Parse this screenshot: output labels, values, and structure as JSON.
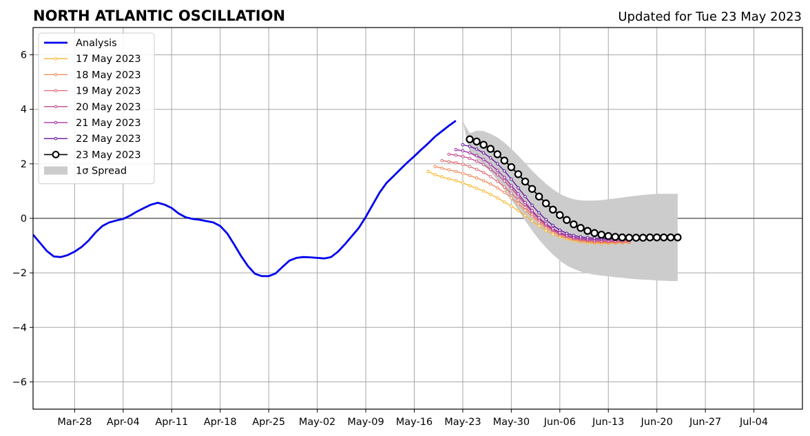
{
  "chart_data": {
    "type": "line",
    "title": "NORTH ATLANTIC OSCILLATION",
    "subtitle": "Updated for Tue 23 May 2023",
    "xlabel": "",
    "ylabel": "",
    "x_axis": {
      "type": "date",
      "range": [
        "2023-03-22",
        "2023-07-11"
      ],
      "ticks": [
        {
          "date": "2023-03-28",
          "label": "Mar-28"
        },
        {
          "date": "2023-04-04",
          "label": "Apr-04"
        },
        {
          "date": "2023-04-11",
          "label": "Apr-11"
        },
        {
          "date": "2023-04-18",
          "label": "Apr-18"
        },
        {
          "date": "2023-04-25",
          "label": "Apr-25"
        },
        {
          "date": "2023-05-02",
          "label": "May-02"
        },
        {
          "date": "2023-05-09",
          "label": "May-09"
        },
        {
          "date": "2023-05-16",
          "label": "May-16"
        },
        {
          "date": "2023-05-23",
          "label": "May-23"
        },
        {
          "date": "2023-05-30",
          "label": "May-30"
        },
        {
          "date": "2023-06-06",
          "label": "Jun-06"
        },
        {
          "date": "2023-06-13",
          "label": "Jun-13"
        },
        {
          "date": "2023-06-20",
          "label": "Jun-20"
        },
        {
          "date": "2023-06-27",
          "label": "Jun-27"
        },
        {
          "date": "2023-07-04",
          "label": "Jul-04"
        }
      ]
    },
    "y_axis": {
      "range": [
        -7,
        7
      ],
      "ticks": [
        {
          "value": -6,
          "label": "−6"
        },
        {
          "value": -4,
          "label": "−4"
        },
        {
          "value": -2,
          "label": "−2"
        },
        {
          "value": 0,
          "label": "0"
        },
        {
          "value": 2,
          "label": "2"
        },
        {
          "value": 4,
          "label": "4"
        },
        {
          "value": 6,
          "label": "6"
        }
      ]
    },
    "grid": true,
    "zero_line": true,
    "legend_position": "top-left",
    "analysis": {
      "name": "Analysis",
      "color": "#0000ee",
      "start_date": "2023-03-22",
      "step_days": 1,
      "values": [
        -0.6,
        -0.9,
        -1.2,
        -1.4,
        -1.42,
        -1.35,
        -1.22,
        -1.05,
        -0.82,
        -0.52,
        -0.28,
        -0.15,
        -0.08,
        -0.02,
        0.1,
        0.25,
        0.38,
        0.5,
        0.57,
        0.5,
        0.38,
        0.18,
        0.04,
        -0.02,
        -0.05,
        -0.1,
        -0.15,
        -0.28,
        -0.55,
        -0.95,
        -1.38,
        -1.75,
        -2.03,
        -2.12,
        -2.12,
        -2.02,
        -1.78,
        -1.55,
        -1.45,
        -1.42,
        -1.43,
        -1.45,
        -1.47,
        -1.42,
        -1.22,
        -0.95,
        -0.65,
        -0.35,
        0.05,
        0.5,
        0.95,
        1.3,
        1.55,
        1.8,
        2.05,
        2.28,
        2.52,
        2.75,
        3.0,
        3.2,
        3.4,
        3.58
      ]
    },
    "spread": {
      "name": "1σ Spread",
      "color": "#cccccc",
      "start_date": "2023-05-23",
      "step_days": 1,
      "upper": [
        3.55,
        3.12,
        3.22,
        3.2,
        3.1,
        2.97,
        2.78,
        2.55,
        2.3,
        2.03,
        1.75,
        1.5,
        1.27,
        1.07,
        0.9,
        0.78,
        0.7,
        0.66,
        0.65,
        0.65,
        0.67,
        0.7,
        0.73,
        0.76,
        0.8,
        0.83,
        0.86,
        0.88,
        0.9,
        0.9,
        0.9,
        0.9
      ],
      "lower": [
        3.55,
        2.4,
        2.2,
        1.96,
        1.7,
        1.4,
        1.05,
        0.68,
        0.3,
        -0.08,
        -0.45,
        -0.78,
        -1.07,
        -1.33,
        -1.55,
        -1.73,
        -1.85,
        -1.95,
        -2.02,
        -2.07,
        -2.1,
        -2.13,
        -2.16,
        -2.18,
        -2.21,
        -2.23,
        -2.25,
        -2.26,
        -2.28,
        -2.29,
        -2.3,
        -2.3
      ]
    },
    "forecasts": [
      {
        "name": "17 May 2023",
        "color": "#f7b52a",
        "start_date": "2023-05-18",
        "step_days": 1,
        "values": [
          1.72,
          1.6,
          1.52,
          1.45,
          1.38,
          1.3,
          1.2,
          1.1,
          1.0,
          0.88,
          0.75,
          0.6,
          0.45,
          0.28,
          0.1,
          -0.1,
          -0.28,
          -0.45,
          -0.58,
          -0.68,
          -0.76,
          -0.82,
          -0.87,
          -0.9,
          -0.91,
          -0.92,
          -0.92,
          -0.91,
          -0.9,
          -0.89
        ]
      },
      {
        "name": "18 May 2023",
        "color": "#f18855",
        "start_date": "2023-05-19",
        "step_days": 1,
        "values": [
          1.9,
          1.84,
          1.78,
          1.72,
          1.65,
          1.57,
          1.48,
          1.38,
          1.26,
          1.12,
          0.95,
          0.75,
          0.53,
          0.3,
          0.07,
          -0.15,
          -0.35,
          -0.5,
          -0.63,
          -0.72,
          -0.78,
          -0.83,
          -0.86,
          -0.88,
          -0.89,
          -0.89,
          -0.89,
          -0.89,
          -0.88
        ]
      },
      {
        "name": "19 May 2023",
        "color": "#e06670",
        "start_date": "2023-05-20",
        "step_days": 1,
        "values": [
          2.12,
          2.08,
          2.04,
          1.98,
          1.9,
          1.8,
          1.68,
          1.53,
          1.36,
          1.15,
          0.92,
          0.67,
          0.4,
          0.15,
          -0.08,
          -0.28,
          -0.45,
          -0.58,
          -0.67,
          -0.74,
          -0.79,
          -0.82,
          -0.84,
          -0.85,
          -0.86,
          -0.86,
          -0.86,
          -0.85
        ]
      },
      {
        "name": "20 May 2023",
        "color": "#c2448c",
        "start_date": "2023-05-21",
        "step_days": 1,
        "values": [
          2.35,
          2.32,
          2.27,
          2.2,
          2.1,
          1.97,
          1.8,
          1.6,
          1.37,
          1.1,
          0.82,
          0.52,
          0.24,
          -0.02,
          -0.24,
          -0.42,
          -0.56,
          -0.66,
          -0.73,
          -0.77,
          -0.8,
          -0.82,
          -0.83,
          -0.83,
          -0.83,
          -0.82,
          -0.81
        ]
      },
      {
        "name": "21 May 2023",
        "color": "#9b22a2",
        "start_date": "2023-05-22",
        "step_days": 1,
        "values": [
          2.52,
          2.48,
          2.4,
          2.3,
          2.16,
          1.98,
          1.76,
          1.5,
          1.2,
          0.9,
          0.58,
          0.28,
          0.02,
          -0.2,
          -0.38,
          -0.52,
          -0.62,
          -0.69,
          -0.73,
          -0.76,
          -0.77,
          -0.78,
          -0.78,
          -0.78,
          -0.77,
          -0.76
        ]
      },
      {
        "name": "22 May 2023",
        "color": "#5f0f9a",
        "start_date": "2023-05-23",
        "step_days": 1,
        "values": [
          2.7,
          2.64,
          2.54,
          2.4,
          2.22,
          2.0,
          1.74,
          1.44,
          1.12,
          0.8,
          0.48,
          0.2,
          -0.05,
          -0.26,
          -0.43,
          -0.55,
          -0.63,
          -0.68,
          -0.71,
          -0.73,
          -0.74,
          -0.74,
          -0.74,
          -0.73,
          -0.72
        ]
      },
      {
        "name": "23 May 2023",
        "color": "#000000",
        "start_date": "2023-05-24",
        "step_days": 1,
        "values": [
          2.9,
          2.82,
          2.7,
          2.55,
          2.35,
          2.12,
          1.88,
          1.62,
          1.35,
          1.08,
          0.8,
          0.55,
          0.32,
          0.12,
          -0.06,
          -0.22,
          -0.35,
          -0.46,
          -0.54,
          -0.6,
          -0.65,
          -0.68,
          -0.7,
          -0.71,
          -0.71,
          -0.71,
          -0.7,
          -0.7,
          -0.7,
          -0.7,
          -0.7
        ]
      }
    ]
  }
}
